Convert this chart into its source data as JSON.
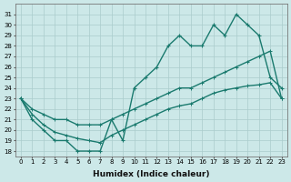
{
  "xlabel": "Humidex (Indice chaleur)",
  "x_values": [
    0,
    1,
    2,
    3,
    4,
    5,
    6,
    7,
    8,
    9,
    10,
    11,
    12,
    13,
    14,
    15,
    16,
    17,
    18,
    19,
    20,
    21,
    22,
    23
  ],
  "upper_y": [
    23,
    21,
    20,
    19,
    19,
    18,
    18,
    18,
    21,
    19,
    24,
    25,
    26,
    28,
    29,
    28,
    28,
    30,
    29,
    31,
    30,
    29,
    25,
    24
  ],
  "mid_y": [
    23,
    22,
    21.5,
    21,
    21,
    20.5,
    20.5,
    20.5,
    21,
    21.5,
    22,
    22.5,
    23,
    23.5,
    24,
    24,
    24.5,
    25,
    25.5,
    26,
    26.5,
    27,
    27.5,
    23
  ],
  "low_y": [
    23,
    21.5,
    20.5,
    19.8,
    19.5,
    19.2,
    19.0,
    18.8,
    19.5,
    20,
    20.5,
    21,
    21.5,
    22,
    22.3,
    22.5,
    23,
    23.5,
    23.8,
    24,
    24.2,
    24.3,
    24.5,
    23
  ],
  "ylim_bottom": 17.5,
  "ylim_top": 32,
  "xlim_left": -0.5,
  "xlim_right": 23.5,
  "yticks": [
    18,
    19,
    20,
    21,
    22,
    23,
    24,
    25,
    26,
    27,
    28,
    29,
    30,
    31
  ],
  "xticks": [
    0,
    1,
    2,
    3,
    4,
    5,
    6,
    7,
    8,
    9,
    10,
    11,
    12,
    13,
    14,
    15,
    16,
    17,
    18,
    19,
    20,
    21,
    22,
    23
  ],
  "color": "#1a7a6e",
  "bg_color": "#cce8e8",
  "grid_color": "#aacccc",
  "line_width": 1.0,
  "marker": "D",
  "marker_size": 2.2,
  "tick_fontsize": 5.0,
  "xlabel_fontsize": 6.5
}
